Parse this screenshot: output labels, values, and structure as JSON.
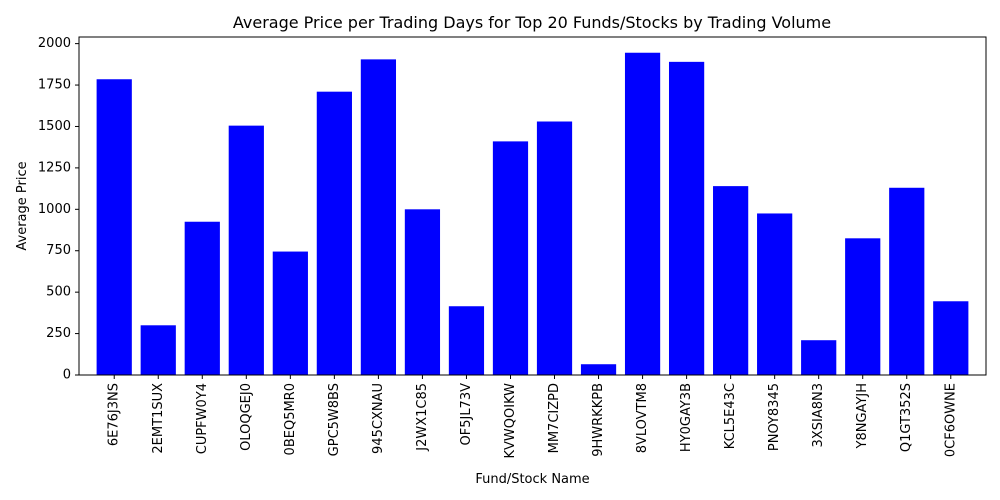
{
  "chart_data": {
    "type": "bar",
    "title": "Average Price per Trading Days for Top 20 Funds/Stocks by Trading Volume",
    "xlabel": "Fund/Stock Name",
    "ylabel": "Average Price",
    "categories": [
      "6E76J3NS",
      "2EMT1SUX",
      "CUPFW0Y4",
      "OLOQGEJ0",
      "0BEQ5MR0",
      "GPC5W8BS",
      "945CXNAU",
      "J2WX1C85",
      "OF5JL73V",
      "KVWQOIKW",
      "MM7CIZPD",
      "9HWRKKPB",
      "8VLOVTM8",
      "HY0GAY3B",
      "KCL5E43C",
      "PNOY8345",
      "3XSIA8N3",
      "Y8NGAYJH",
      "Q1GT352S",
      "0CF6OWNE"
    ],
    "values": [
      1785,
      300,
      925,
      1505,
      745,
      1710,
      1905,
      1000,
      415,
      1410,
      1530,
      65,
      1945,
      1890,
      1140,
      975,
      210,
      825,
      1130,
      445
    ],
    "ylim": [
      0,
      2040
    ],
    "yticks": [
      0,
      250,
      500,
      750,
      1000,
      1250,
      1500,
      1750,
      2000
    ],
    "bar_color": "#0000ff",
    "grid": false,
    "legend": "none"
  }
}
